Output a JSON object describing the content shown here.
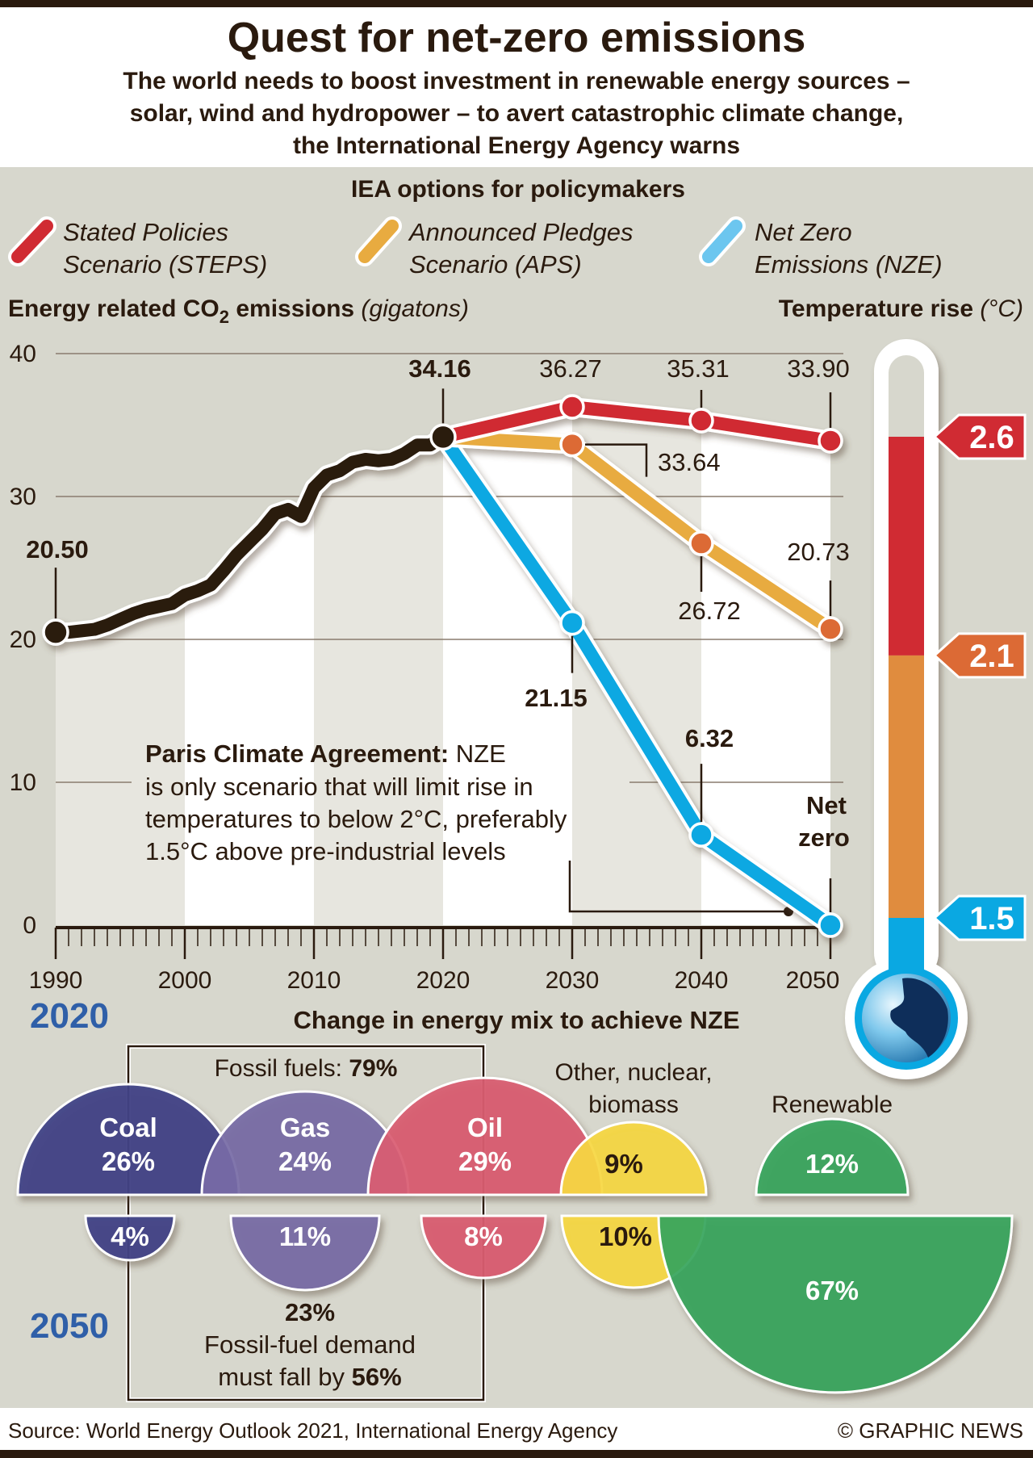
{
  "header": {
    "title": "Quest for net-zero emissions",
    "subtitle_lines": [
      "The world needs to boost investment in renewable energy sources –",
      "solar, wind and hydropower – to avert catastrophic climate change,",
      "the International Energy Agency warns"
    ]
  },
  "legend": {
    "heading": "IEA options for policymakers",
    "items": [
      {
        "line1": "Stated Policies",
        "line2": "Scenario (STEPS)",
        "color": "#d02b33"
      },
      {
        "line1": "Announced Pledges",
        "line2": "Scenario (APS)",
        "color": "#e8ab40"
      },
      {
        "line1": "Net Zero",
        "line2": "Emissions (NZE)",
        "color": "#6cc6ef"
      }
    ]
  },
  "chart_data": [
    {
      "type": "line",
      "title_main": "Energy related CO",
      "title_sub": "2",
      "title_rest": " emissions ",
      "title_unit": "(gigatons)",
      "ylim": [
        0,
        40
      ],
      "yticks": [
        0,
        10,
        20,
        30,
        40
      ],
      "xlim": [
        1990,
        2050
      ],
      "xticks": [
        1990,
        2000,
        2010,
        2020,
        2030,
        2040,
        2050
      ],
      "grid": true,
      "historical": {
        "color": "#2b1a0e",
        "x": [
          1990,
          1991,
          1992,
          1993,
          1994,
          1995,
          1996,
          1997,
          1998,
          1999,
          2000,
          2001,
          2002,
          2003,
          2004,
          2005,
          2006,
          2007,
          2008,
          2009,
          2010,
          2011,
          2012,
          2013,
          2014,
          2015,
          2016,
          2017,
          2018,
          2019,
          2020
        ],
        "y": [
          20.5,
          20.5,
          20.6,
          20.7,
          21.0,
          21.4,
          21.8,
          22.1,
          22.3,
          22.5,
          23.1,
          23.4,
          23.8,
          24.8,
          25.9,
          26.8,
          27.7,
          28.8,
          29.1,
          28.6,
          30.6,
          31.5,
          31.8,
          32.4,
          32.6,
          32.5,
          32.6,
          33.0,
          33.6,
          33.6,
          34.16
        ],
        "labels": [
          {
            "x": 1990,
            "y": 20.5,
            "text": "20.50"
          },
          {
            "x": 2020,
            "y": 34.16,
            "text": "34.16"
          }
        ]
      },
      "series": [
        {
          "name": "Stated Policies Scenario (STEPS)",
          "color": "#d02b33",
          "dot": "#d02b33",
          "x": [
            2020,
            2030,
            2040,
            2050
          ],
          "y": [
            34.16,
            36.27,
            35.31,
            33.9
          ],
          "labels": [
            "",
            "36.27",
            "35.31",
            "33.90"
          ]
        },
        {
          "name": "Announced Pledges Scenario (APS)",
          "color": "#e8ab40",
          "dot": "#dc6a35",
          "x": [
            2020,
            2030,
            2040,
            2050
          ],
          "y": [
            34.16,
            33.64,
            26.72,
            20.73
          ],
          "labels": [
            "",
            "33.64",
            "26.72",
            "20.73"
          ]
        },
        {
          "name": "Net Zero Emissions (NZE)",
          "color": "#0aa8e2",
          "dot": "#0aa8e2",
          "x": [
            2020,
            2030,
            2040,
            2050
          ],
          "y": [
            34.16,
            21.15,
            6.32,
            0
          ],
          "labels": [
            "",
            "21.15",
            "6.32",
            "Net zero"
          ]
        }
      ],
      "annotation": {
        "bold": "Paris Climate Agreement:",
        "lines": [
          " NZE",
          "is only scenario that will limit rise in",
          "temperatures to below 2°C, preferably",
          "1.5°C above pre-industrial levels"
        ]
      }
    },
    {
      "type": "thermometer",
      "title_main": "Temperature rise ",
      "title_unit": "(°C)",
      "levels": [
        {
          "value": 2.6,
          "label": "2.6",
          "color": "#d02b33"
        },
        {
          "value": 2.1,
          "label": "2.1",
          "color": "#dc6a35"
        },
        {
          "value": 1.5,
          "label": "1.5",
          "color": "#0aa8e2"
        }
      ]
    },
    {
      "type": "semicircle-comparison",
      "title": "Change in energy mix to achieve NZE",
      "year_top": "2020",
      "year_bottom": "2050",
      "categories": [
        {
          "name": "Coal",
          "v2020": "26%",
          "v2050": "4%",
          "color": "#3f4287"
        },
        {
          "name": "Gas",
          "v2020": "24%",
          "v2050": "11%",
          "color": "#776ca6"
        },
        {
          "name": "Oil",
          "v2020": "29%",
          "v2050": "8%",
          "color": "#d95c71"
        },
        {
          "name": "Other, nuclear, biomass",
          "v2020": "9%",
          "v2050": "10%",
          "color": "#f6d743"
        },
        {
          "name": "Renewable",
          "v2020": "12%",
          "v2050": "67%",
          "color": "#37a55d"
        }
      ],
      "fossil_label": "Fossil fuels: ",
      "fossil_2020": "79%",
      "fossil_2050": "23%",
      "fossil_note_line1": "Fossil-fuel demand",
      "fossil_note_line2": "must fall by ",
      "fossil_fall": "56%",
      "other_label_lines": [
        "Other, nuclear,",
        "biomass"
      ]
    }
  ],
  "footer": {
    "source": "Source: World Energy Outlook 2021, International Energy Agency",
    "credit": "© GRAPHIC NEWS"
  }
}
